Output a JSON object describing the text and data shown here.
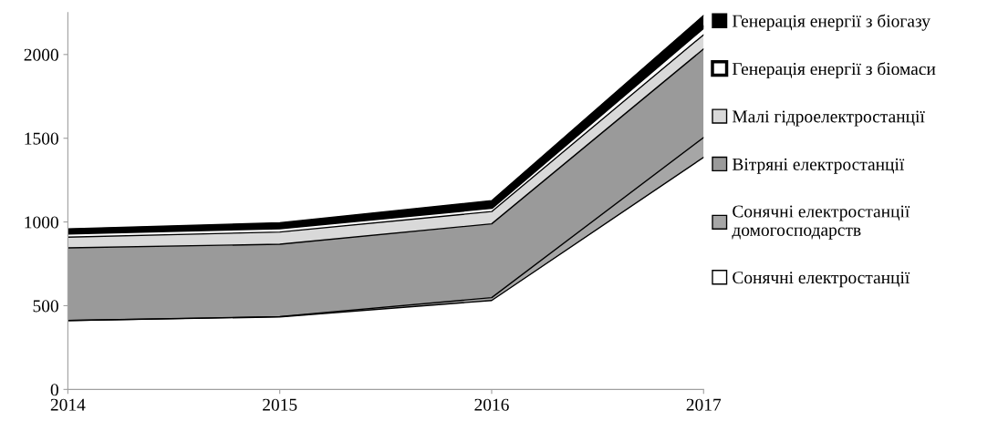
{
  "chart_data": {
    "type": "area",
    "stacked": true,
    "x": [
      2014,
      2015,
      2016,
      2017
    ],
    "xlim": [
      2014,
      2017
    ],
    "xticks": [
      2014,
      2015,
      2016,
      2017
    ],
    "ylim": [
      0,
      2250
    ],
    "yticks": [
      0,
      500,
      1000,
      1500,
      2000
    ],
    "grid": false,
    "legend": "right",
    "series": [
      {
        "name": "Сонячні електростанції",
        "color": "#ffffff",
        "values": [
          411,
          433,
          531,
          1386
        ]
      },
      {
        "name": "Сонячні електростанції домогосподарств",
        "color": "#a6a6a6",
        "values": [
          0,
          2,
          17,
          118
        ]
      },
      {
        "name": "Вітряні електростанції",
        "color": "#9a9a9a",
        "values": [
          434,
          432,
          441,
          529
        ]
      },
      {
        "name": "Малі гідроелектростанції",
        "color": "#d9d9d9",
        "values": [
          64,
          73,
          73,
          85
        ]
      },
      {
        "name": "Генерація енергії з біомаси",
        "color": "#ffffff",
        "values": [
          25,
          25,
          25,
          45
        ]
      },
      {
        "name": "Генерація енергії з біогазу",
        "color": "#000000",
        "values": [
          25,
          30,
          40,
          70
        ]
      }
    ]
  }
}
